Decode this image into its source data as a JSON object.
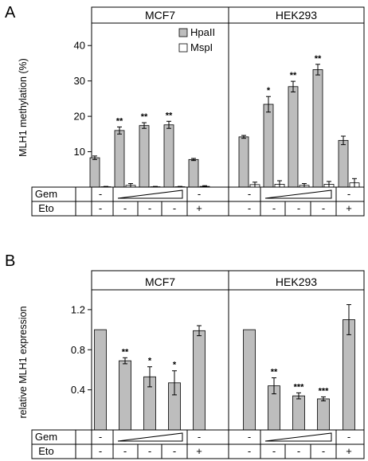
{
  "panels": {
    "A": {
      "letter": "A",
      "ylabel": "MLH1 methylation (%)",
      "legend": [
        "HpaII",
        "MspI"
      ],
      "row_labels": [
        "Gem",
        "Eto"
      ]
    },
    "B": {
      "letter": "B",
      "ylabel": "relative MLH1 expression",
      "row_labels": [
        "Gem",
        "Eto"
      ]
    }
  },
  "groups": [
    "MCF7",
    "HEK293"
  ],
  "colors": {
    "hpaii": "#bdbdbd",
    "mspi": "#ffffff",
    "stroke": "#000000"
  },
  "chart_data": [
    {
      "type": "bar",
      "ylabel": "MLH1 methylation (%)",
      "ylim": [
        0,
        45
      ],
      "yticks": [
        10,
        20,
        30,
        40
      ],
      "groups": [
        "MCF7",
        "HEK293"
      ],
      "legend": [
        "HpaII",
        "MspI"
      ],
      "conditions": {
        "Gem": [
          "-",
          "ramp",
          "ramp",
          "ramp",
          "-"
        ],
        "Eto": [
          "-",
          "-",
          "-",
          "-",
          "+"
        ]
      },
      "series": [
        {
          "name": "HpaII",
          "values": [
            [
              8.3,
              16.0,
              17.4,
              17.6,
              7.8
            ],
            [
              14.2,
              23.4,
              28.4,
              33.2,
              13.2
            ]
          ],
          "errors": [
            [
              0.5,
              1.0,
              0.8,
              1.0,
              0.3
            ],
            [
              0.4,
              2.2,
              1.5,
              1.5,
              1.2
            ]
          ]
        },
        {
          "name": "MspI",
          "values": [
            [
              0.1,
              0.5,
              0.1,
              0.1,
              0.2
            ],
            [
              0.7,
              0.8,
              0.5,
              0.8,
              1.2
            ]
          ],
          "errors": [
            [
              0.1,
              0.5,
              0.1,
              0.1,
              0.2
            ],
            [
              0.7,
              1.0,
              0.5,
              0.8,
              1.2
            ]
          ]
        }
      ],
      "significance": [
        [
          "",
          "**",
          "**",
          "**",
          ""
        ],
        [
          "",
          "*",
          "**",
          "**",
          ""
        ]
      ]
    },
    {
      "type": "bar",
      "ylabel": "relative MLH1 expression",
      "ylim": [
        0,
        1.35
      ],
      "yticks": [
        0.4,
        0.8,
        1.2
      ],
      "groups": [
        "MCF7",
        "HEK293"
      ],
      "conditions": {
        "Gem": [
          "-",
          "ramp",
          "ramp",
          "ramp",
          "-"
        ],
        "Eto": [
          "-",
          "-",
          "-",
          "-",
          "+"
        ]
      },
      "series": [
        {
          "name": "",
          "values": [
            [
              1.0,
              0.69,
              0.53,
              0.47,
              0.99
            ],
            [
              1.0,
              0.44,
              0.34,
              0.31,
              1.1
            ]
          ],
          "errors": [
            [
              0,
              0.03,
              0.1,
              0.12,
              0.05
            ],
            [
              0,
              0.08,
              0.03,
              0.02,
              0.15
            ]
          ]
        }
      ],
      "significance": [
        [
          "",
          "**",
          "*",
          "*",
          ""
        ],
        [
          "",
          "**",
          "***",
          "***",
          ""
        ]
      ]
    }
  ]
}
